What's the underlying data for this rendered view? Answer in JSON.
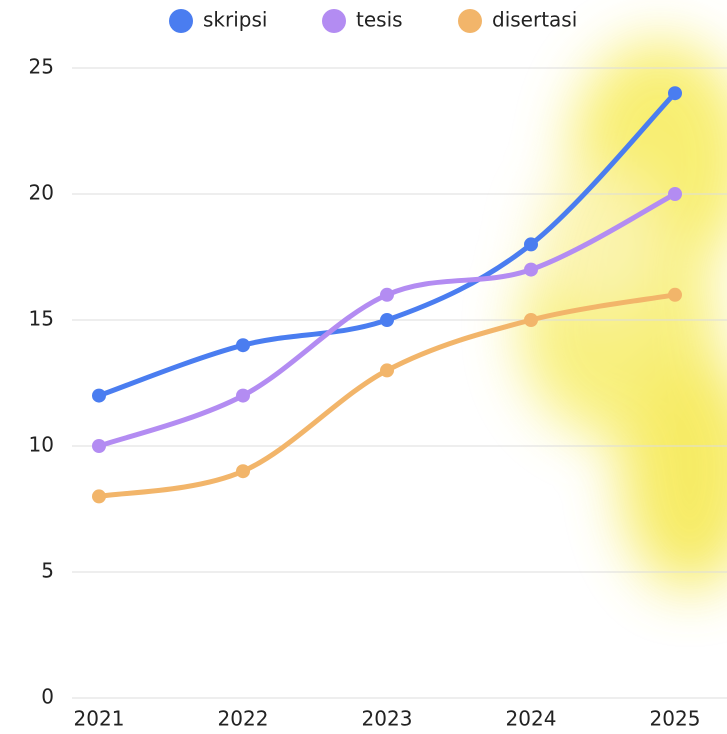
{
  "chart_data": {
    "type": "line",
    "categories": [
      "2021",
      "2022",
      "2023",
      "2024",
      "2025"
    ],
    "series": [
      {
        "name": "skripsi",
        "color": "#4a7df0",
        "values": [
          12,
          14,
          15,
          18,
          24
        ]
      },
      {
        "name": "tesis",
        "color": "#b38cf2",
        "values": [
          10,
          12,
          16,
          17,
          20
        ]
      },
      {
        "name": "disertasi",
        "color": "#f2b56a",
        "values": [
          8,
          9,
          13,
          15,
          16
        ]
      }
    ],
    "ylim": [
      0,
      25
    ],
    "yticks": [
      0,
      5,
      10,
      15,
      20,
      25
    ],
    "grid": true,
    "legend": "top"
  }
}
